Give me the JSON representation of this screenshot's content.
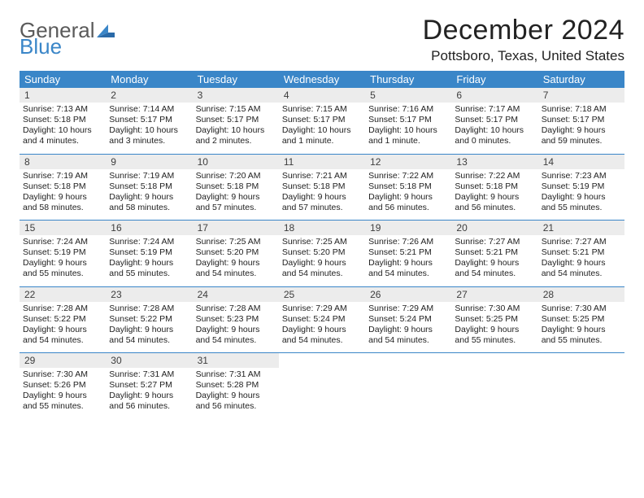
{
  "logo": {
    "text1": "General",
    "text2": "Blue"
  },
  "title": "December 2024",
  "location": "Pottsboro, Texas, United States",
  "colors": {
    "header_bg": "#3a86c8",
    "daynum_bg": "#ececec",
    "rule": "#3a86c8",
    "text": "#222222",
    "logo_gray": "#5a5a5a",
    "logo_blue": "#3a86c8"
  },
  "day_names": [
    "Sunday",
    "Monday",
    "Tuesday",
    "Wednesday",
    "Thursday",
    "Friday",
    "Saturday"
  ],
  "weeks": [
    [
      {
        "n": "1",
        "sr": "Sunrise: 7:13 AM",
        "ss": "Sunset: 5:18 PM",
        "dl1": "Daylight: 10 hours",
        "dl2": "and 4 minutes."
      },
      {
        "n": "2",
        "sr": "Sunrise: 7:14 AM",
        "ss": "Sunset: 5:17 PM",
        "dl1": "Daylight: 10 hours",
        "dl2": "and 3 minutes."
      },
      {
        "n": "3",
        "sr": "Sunrise: 7:15 AM",
        "ss": "Sunset: 5:17 PM",
        "dl1": "Daylight: 10 hours",
        "dl2": "and 2 minutes."
      },
      {
        "n": "4",
        "sr": "Sunrise: 7:15 AM",
        "ss": "Sunset: 5:17 PM",
        "dl1": "Daylight: 10 hours",
        "dl2": "and 1 minute."
      },
      {
        "n": "5",
        "sr": "Sunrise: 7:16 AM",
        "ss": "Sunset: 5:17 PM",
        "dl1": "Daylight: 10 hours",
        "dl2": "and 1 minute."
      },
      {
        "n": "6",
        "sr": "Sunrise: 7:17 AM",
        "ss": "Sunset: 5:17 PM",
        "dl1": "Daylight: 10 hours",
        "dl2": "and 0 minutes."
      },
      {
        "n": "7",
        "sr": "Sunrise: 7:18 AM",
        "ss": "Sunset: 5:17 PM",
        "dl1": "Daylight: 9 hours",
        "dl2": "and 59 minutes."
      }
    ],
    [
      {
        "n": "8",
        "sr": "Sunrise: 7:19 AM",
        "ss": "Sunset: 5:18 PM",
        "dl1": "Daylight: 9 hours",
        "dl2": "and 58 minutes."
      },
      {
        "n": "9",
        "sr": "Sunrise: 7:19 AM",
        "ss": "Sunset: 5:18 PM",
        "dl1": "Daylight: 9 hours",
        "dl2": "and 58 minutes."
      },
      {
        "n": "10",
        "sr": "Sunrise: 7:20 AM",
        "ss": "Sunset: 5:18 PM",
        "dl1": "Daylight: 9 hours",
        "dl2": "and 57 minutes."
      },
      {
        "n": "11",
        "sr": "Sunrise: 7:21 AM",
        "ss": "Sunset: 5:18 PM",
        "dl1": "Daylight: 9 hours",
        "dl2": "and 57 minutes."
      },
      {
        "n": "12",
        "sr": "Sunrise: 7:22 AM",
        "ss": "Sunset: 5:18 PM",
        "dl1": "Daylight: 9 hours",
        "dl2": "and 56 minutes."
      },
      {
        "n": "13",
        "sr": "Sunrise: 7:22 AM",
        "ss": "Sunset: 5:18 PM",
        "dl1": "Daylight: 9 hours",
        "dl2": "and 56 minutes."
      },
      {
        "n": "14",
        "sr": "Sunrise: 7:23 AM",
        "ss": "Sunset: 5:19 PM",
        "dl1": "Daylight: 9 hours",
        "dl2": "and 55 minutes."
      }
    ],
    [
      {
        "n": "15",
        "sr": "Sunrise: 7:24 AM",
        "ss": "Sunset: 5:19 PM",
        "dl1": "Daylight: 9 hours",
        "dl2": "and 55 minutes."
      },
      {
        "n": "16",
        "sr": "Sunrise: 7:24 AM",
        "ss": "Sunset: 5:19 PM",
        "dl1": "Daylight: 9 hours",
        "dl2": "and 55 minutes."
      },
      {
        "n": "17",
        "sr": "Sunrise: 7:25 AM",
        "ss": "Sunset: 5:20 PM",
        "dl1": "Daylight: 9 hours",
        "dl2": "and 54 minutes."
      },
      {
        "n": "18",
        "sr": "Sunrise: 7:25 AM",
        "ss": "Sunset: 5:20 PM",
        "dl1": "Daylight: 9 hours",
        "dl2": "and 54 minutes."
      },
      {
        "n": "19",
        "sr": "Sunrise: 7:26 AM",
        "ss": "Sunset: 5:21 PM",
        "dl1": "Daylight: 9 hours",
        "dl2": "and 54 minutes."
      },
      {
        "n": "20",
        "sr": "Sunrise: 7:27 AM",
        "ss": "Sunset: 5:21 PM",
        "dl1": "Daylight: 9 hours",
        "dl2": "and 54 minutes."
      },
      {
        "n": "21",
        "sr": "Sunrise: 7:27 AM",
        "ss": "Sunset: 5:21 PM",
        "dl1": "Daylight: 9 hours",
        "dl2": "and 54 minutes."
      }
    ],
    [
      {
        "n": "22",
        "sr": "Sunrise: 7:28 AM",
        "ss": "Sunset: 5:22 PM",
        "dl1": "Daylight: 9 hours",
        "dl2": "and 54 minutes."
      },
      {
        "n": "23",
        "sr": "Sunrise: 7:28 AM",
        "ss": "Sunset: 5:22 PM",
        "dl1": "Daylight: 9 hours",
        "dl2": "and 54 minutes."
      },
      {
        "n": "24",
        "sr": "Sunrise: 7:28 AM",
        "ss": "Sunset: 5:23 PM",
        "dl1": "Daylight: 9 hours",
        "dl2": "and 54 minutes."
      },
      {
        "n": "25",
        "sr": "Sunrise: 7:29 AM",
        "ss": "Sunset: 5:24 PM",
        "dl1": "Daylight: 9 hours",
        "dl2": "and 54 minutes."
      },
      {
        "n": "26",
        "sr": "Sunrise: 7:29 AM",
        "ss": "Sunset: 5:24 PM",
        "dl1": "Daylight: 9 hours",
        "dl2": "and 54 minutes."
      },
      {
        "n": "27",
        "sr": "Sunrise: 7:30 AM",
        "ss": "Sunset: 5:25 PM",
        "dl1": "Daylight: 9 hours",
        "dl2": "and 55 minutes."
      },
      {
        "n": "28",
        "sr": "Sunrise: 7:30 AM",
        "ss": "Sunset: 5:25 PM",
        "dl1": "Daylight: 9 hours",
        "dl2": "and 55 minutes."
      }
    ],
    [
      {
        "n": "29",
        "sr": "Sunrise: 7:30 AM",
        "ss": "Sunset: 5:26 PM",
        "dl1": "Daylight: 9 hours",
        "dl2": "and 55 minutes."
      },
      {
        "n": "30",
        "sr": "Sunrise: 7:31 AM",
        "ss": "Sunset: 5:27 PM",
        "dl1": "Daylight: 9 hours",
        "dl2": "and 56 minutes."
      },
      {
        "n": "31",
        "sr": "Sunrise: 7:31 AM",
        "ss": "Sunset: 5:28 PM",
        "dl1": "Daylight: 9 hours",
        "dl2": "and 56 minutes."
      },
      {
        "empty": true
      },
      {
        "empty": true
      },
      {
        "empty": true
      },
      {
        "empty": true
      }
    ]
  ]
}
